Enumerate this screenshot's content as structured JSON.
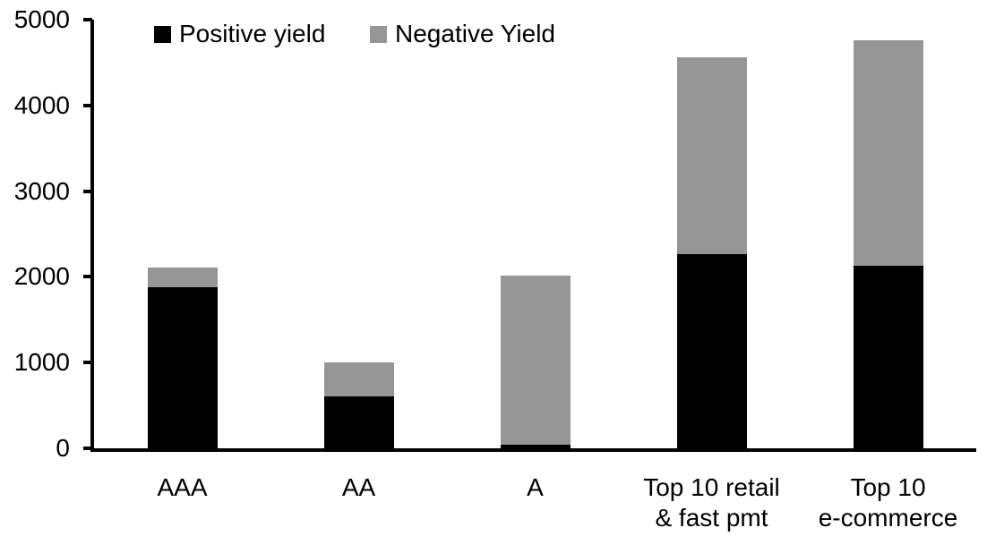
{
  "chart_data": {
    "type": "bar",
    "stacked": true,
    "title": "",
    "xlabel": "",
    "ylabel": "",
    "grid": false,
    "legend_position": "top",
    "ylim": [
      0,
      5000
    ],
    "yticks": [
      0,
      1000,
      2000,
      3000,
      4000,
      5000
    ],
    "categories": [
      "AAA",
      "AA",
      "A",
      "Top 10 retail\n& fast pmt",
      "Top 10\ne-commerce"
    ],
    "series": [
      {
        "name": "Positive yield",
        "color": "#000000",
        "values": [
          1880,
          610,
          40,
          2270,
          2130
        ]
      },
      {
        "name": "Negative Yield",
        "color": "#969696",
        "values": [
          230,
          390,
          1980,
          2290,
          2630
        ]
      }
    ],
    "totals": [
      2110,
      1000,
      2020,
      4560,
      4760
    ]
  },
  "axes": {
    "y_tick_labels": [
      "0",
      "1000",
      "2000",
      "3000",
      "4000",
      "5000"
    ]
  }
}
